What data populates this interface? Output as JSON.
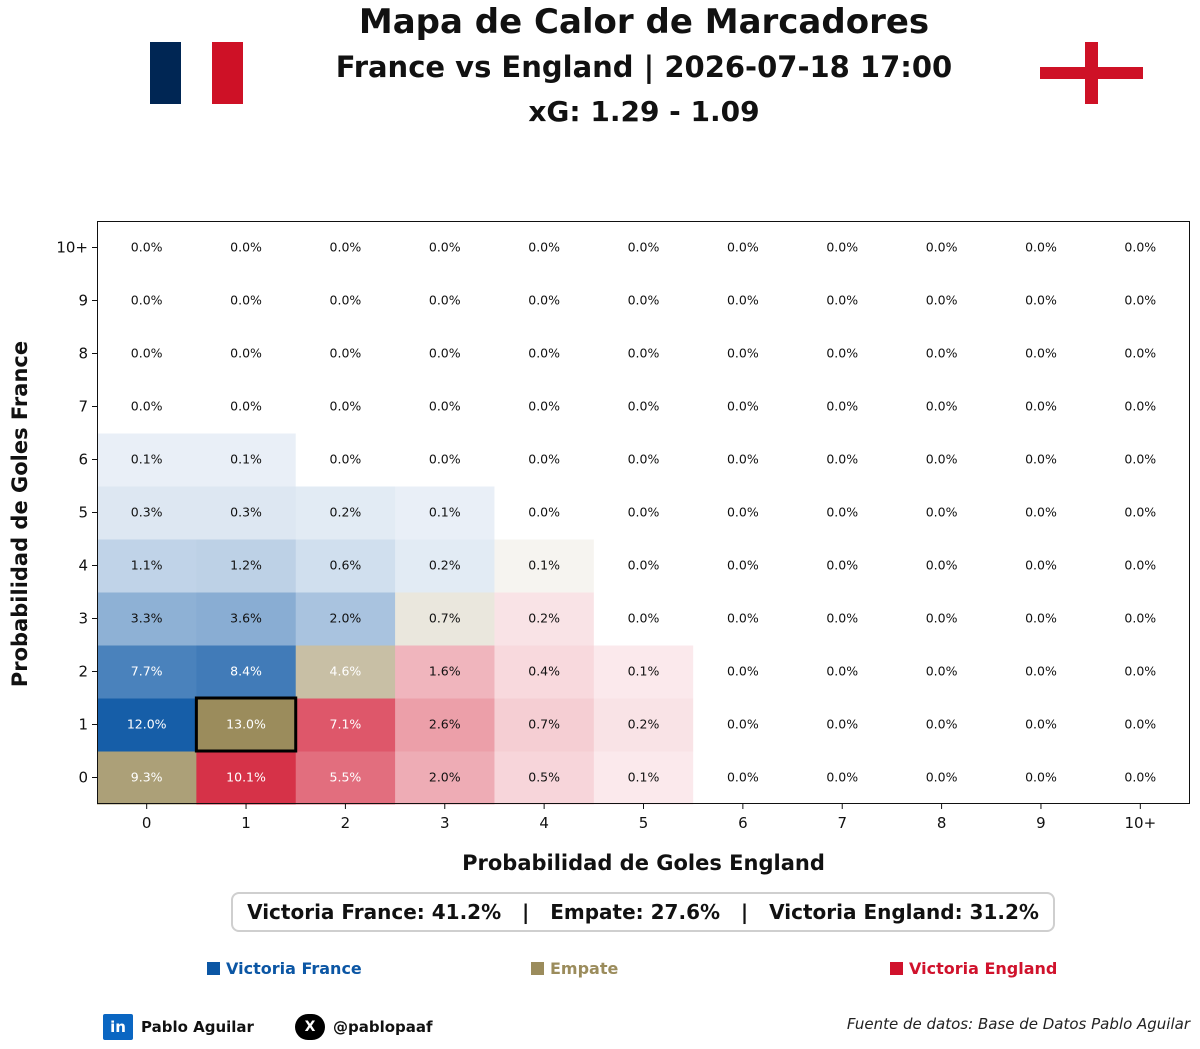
{
  "header": {
    "title": "Mapa de Calor de Marcadores",
    "match": "France vs England | 2026-07-18 17:00",
    "xg": "xG: 1.29 - 1.09"
  },
  "flags": {
    "home": {
      "name": "France",
      "colors": [
        "#002654",
        "#ffffff",
        "#ce1126"
      ]
    },
    "away": {
      "name": "England",
      "colors": [
        "#ffffff",
        "#ce1126"
      ]
    }
  },
  "summary": {
    "home_win": "Victoria France: 41.2%",
    "separator": "   |   ",
    "draw": "Empate: 27.6%",
    "away_win": "Victoria England: 31.2%"
  },
  "legend": {
    "home": {
      "label": "Victoria France",
      "color": "#0b56a4"
    },
    "draw": {
      "label": "Empate",
      "color": "#9b8c5c"
    },
    "away": {
      "label": "Victoria England",
      "color": "#d0122c"
    }
  },
  "footer": {
    "linkedin_icon": "linkedin-icon",
    "linkedin_text": "in",
    "linkedin_name": "Pablo Aguilar",
    "x_icon": "x-icon",
    "x_text": "X",
    "x_handle": "@pablopaaf",
    "source": "Fuente de datos: Base de Datos Pablo Aguilar"
  },
  "chart_data": {
    "type": "heatmap",
    "xlabel": "Probabilidad de Goles England",
    "ylabel": "Probabilidad de Goles France",
    "x_categories": [
      "0",
      "1",
      "2",
      "3",
      "4",
      "5",
      "6",
      "7",
      "8",
      "9",
      "10+"
    ],
    "y_categories": [
      "0",
      "1",
      "2",
      "3",
      "4",
      "5",
      "6",
      "7",
      "8",
      "9",
      "10+"
    ],
    "highlighted_cell": {
      "france": "1",
      "england": "1"
    },
    "values": [
      [
        9.3,
        10.1,
        5.5,
        2.0,
        0.5,
        0.1,
        0.0,
        0.0,
        0.0,
        0.0,
        0.0
      ],
      [
        12.0,
        13.0,
        7.1,
        2.6,
        0.7,
        0.2,
        0.0,
        0.0,
        0.0,
        0.0,
        0.0
      ],
      [
        7.7,
        8.4,
        4.6,
        1.6,
        0.4,
        0.1,
        0.0,
        0.0,
        0.0,
        0.0,
        0.0
      ],
      [
        3.3,
        3.6,
        2.0,
        0.7,
        0.2,
        0.0,
        0.0,
        0.0,
        0.0,
        0.0,
        0.0
      ],
      [
        1.1,
        1.2,
        0.6,
        0.2,
        0.1,
        0.0,
        0.0,
        0.0,
        0.0,
        0.0,
        0.0
      ],
      [
        0.3,
        0.3,
        0.2,
        0.1,
        0.0,
        0.0,
        0.0,
        0.0,
        0.0,
        0.0,
        0.0
      ],
      [
        0.1,
        0.1,
        0.0,
        0.0,
        0.0,
        0.0,
        0.0,
        0.0,
        0.0,
        0.0,
        0.0
      ],
      [
        0.0,
        0.0,
        0.0,
        0.0,
        0.0,
        0.0,
        0.0,
        0.0,
        0.0,
        0.0,
        0.0
      ],
      [
        0.0,
        0.0,
        0.0,
        0.0,
        0.0,
        0.0,
        0.0,
        0.0,
        0.0,
        0.0,
        0.0
      ],
      [
        0.0,
        0.0,
        0.0,
        0.0,
        0.0,
        0.0,
        0.0,
        0.0,
        0.0,
        0.0,
        0.0
      ],
      [
        0.0,
        0.0,
        0.0,
        0.0,
        0.0,
        0.0,
        0.0,
        0.0,
        0.0,
        0.0,
        0.0
      ]
    ],
    "value_suffix": "%",
    "colors": {
      "home_win": "#0b56a4",
      "draw": "#9b8c5c",
      "away_win": "#d0122c"
    }
  }
}
